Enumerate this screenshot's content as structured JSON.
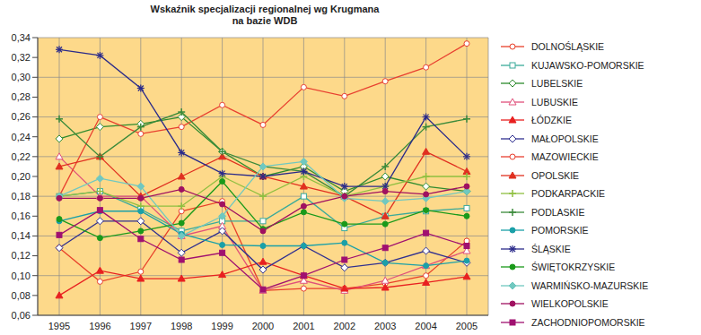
{
  "chart_data": {
    "type": "line",
    "title": "Wskaźnik specjalizacji regionalnej wg Krugmana\nna bazie WDB",
    "categories": [
      "1995",
      "1996",
      "1997",
      "1998",
      "1999",
      "2000",
      "2001",
      "2002",
      "2003",
      "2004",
      "2005"
    ],
    "ylim": [
      0.06,
      0.34
    ],
    "yticks": [
      {
        "value": 0.06,
        "label": "0,06"
      },
      {
        "value": 0.08,
        "label": "0,08"
      },
      {
        "value": 0.1,
        "label": "0,10"
      },
      {
        "value": 0.12,
        "label": "0,12"
      },
      {
        "value": 0.14,
        "label": "0,14"
      },
      {
        "value": 0.16,
        "label": "0,16"
      },
      {
        "value": 0.18,
        "label": "0,18"
      },
      {
        "value": 0.2,
        "label": "0,20"
      },
      {
        "value": 0.22,
        "label": "0,22"
      },
      {
        "value": 0.24,
        "label": "0,24"
      },
      {
        "value": 0.26,
        "label": "0,26"
      },
      {
        "value": 0.28,
        "label": "0,28"
      },
      {
        "value": 0.3,
        "label": "0,30"
      },
      {
        "value": 0.32,
        "label": "0,32"
      },
      {
        "value": 0.34,
        "label": "0,34"
      }
    ],
    "grid": true,
    "legend": "right",
    "series": [
      {
        "name": "DOLNOŚLĄSKIE",
        "color": "#e8402a",
        "marker": "circle-open",
        "values": [
          0.128,
          0.094,
          0.104,
          0.165,
          0.175,
          0.085,
          0.087,
          0.087,
          0.092,
          0.1,
          0.135
        ]
      },
      {
        "name": "KUJAWSKO-POMORSKIE",
        "color": "#3aaa9a",
        "marker": "square-open",
        "values": [
          0.18,
          0.185,
          0.167,
          0.145,
          0.155,
          0.155,
          0.18,
          0.148,
          0.16,
          0.165,
          0.168
        ]
      },
      {
        "name": "LUBELSKIE",
        "color": "#2e8b2e",
        "marker": "diamond-open",
        "values": [
          0.238,
          0.25,
          0.253,
          0.26,
          0.225,
          0.2,
          0.21,
          0.185,
          0.2,
          0.19,
          0.185
        ]
      },
      {
        "name": "LUBUSKIE",
        "color": "#e0507a",
        "marker": "triangle-open",
        "values": [
          0.22,
          0.18,
          0.18,
          0.14,
          0.15,
          0.085,
          0.095,
          0.085,
          0.095,
          0.11,
          0.125
        ]
      },
      {
        "name": "ŁÓDZKIE",
        "color": "#e82020",
        "marker": "triangle",
        "values": [
          0.08,
          0.105,
          0.097,
          0.097,
          0.101,
          0.114,
          0.1,
          0.087,
          0.088,
          0.093,
          0.099
        ]
      },
      {
        "name": "MAŁOPOLSKIE",
        "color": "#303090",
        "marker": "diamond-open",
        "values": [
          0.128,
          0.155,
          0.155,
          0.123,
          0.145,
          0.106,
          0.13,
          0.108,
          0.113,
          0.125,
          0.113
        ]
      },
      {
        "name": "MAZOWIECKIE",
        "color": "#e84030",
        "marker": "circle-open",
        "values": [
          0.18,
          0.26,
          0.243,
          0.25,
          0.272,
          0.252,
          0.29,
          0.281,
          0.296,
          0.31,
          0.334
        ]
      },
      {
        "name": "OPOLSKIE",
        "color": "#e03020",
        "marker": "triangle",
        "values": [
          0.21,
          0.22,
          0.18,
          0.2,
          0.22,
          0.2,
          0.19,
          0.18,
          0.16,
          0.225,
          0.205
        ]
      },
      {
        "name": "PODKARPACKIE",
        "color": "#8fbf40",
        "marker": "cross",
        "values": [
          0.18,
          0.185,
          0.17,
          0.17,
          0.2,
          0.18,
          0.2,
          0.18,
          0.19,
          0.2,
          0.2
        ]
      },
      {
        "name": "PODLASKIE",
        "color": "#3a8a3a",
        "marker": "cross",
        "values": [
          0.258,
          0.22,
          0.25,
          0.265,
          0.225,
          0.21,
          0.205,
          0.18,
          0.21,
          0.25,
          0.258
        ]
      },
      {
        "name": "POMORSKIE",
        "color": "#1aa0a8",
        "marker": "circle",
        "values": [
          0.155,
          0.165,
          0.165,
          0.142,
          0.131,
          0.13,
          0.13,
          0.133,
          0.113,
          0.11,
          0.115
        ]
      },
      {
        "name": "ŚLĄSKIE",
        "color": "#2a2a8a",
        "marker": "star",
        "values": [
          0.328,
          0.322,
          0.289,
          0.224,
          0.203,
          0.2,
          0.205,
          0.19,
          0.19,
          0.26,
          0.22
        ]
      },
      {
        "name": "ŚWIĘTOKRZYSKIE",
        "color": "#1a9a1a",
        "marker": "circle",
        "values": [
          0.157,
          0.138,
          0.145,
          0.153,
          0.195,
          0.147,
          0.164,
          0.152,
          0.152,
          0.166,
          0.16
        ]
      },
      {
        "name": "WARMIŃSKO-MAZURSKIE",
        "color": "#70c8c0",
        "marker": "diamond",
        "values": [
          0.18,
          0.198,
          0.19,
          0.14,
          0.16,
          0.21,
          0.215,
          0.178,
          0.175,
          0.178,
          0.185
        ]
      },
      {
        "name": "WIELKOPOLSKIE",
        "color": "#a01060",
        "marker": "circle",
        "values": [
          0.178,
          0.178,
          0.178,
          0.187,
          0.172,
          0.145,
          0.17,
          0.18,
          0.185,
          0.182,
          0.19
        ]
      },
      {
        "name": "ZACHODNIOPOMORSKIE",
        "color": "#a01070",
        "marker": "square",
        "values": [
          0.141,
          0.166,
          0.137,
          0.116,
          0.123,
          0.086,
          0.1,
          0.116,
          0.128,
          0.143,
          0.13
        ]
      }
    ]
  }
}
